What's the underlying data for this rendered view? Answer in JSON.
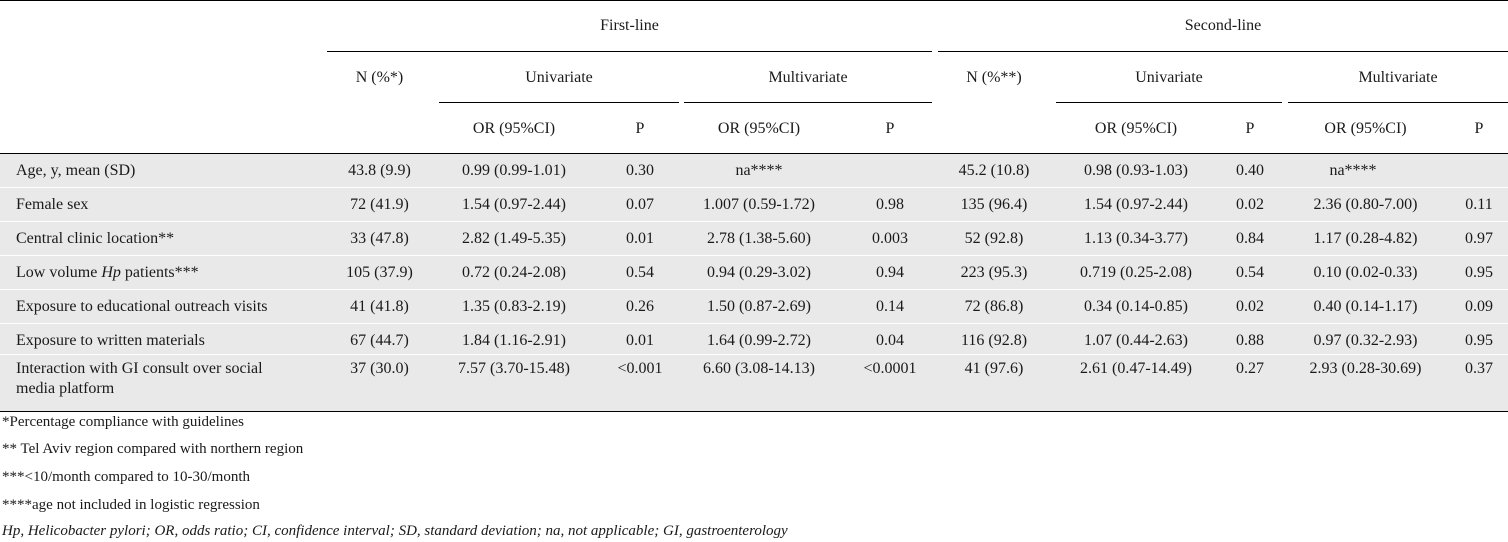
{
  "header": {
    "first_line": "First-line",
    "second_line": "Second-line",
    "n_pct_first": "N (%*)",
    "n_pct_second": "N (%**)",
    "univariate": "Univariate",
    "multivariate": "Multivariate",
    "or_ci": "OR (95%CI)",
    "p": "P"
  },
  "rows": [
    {
      "label": "Age, y, mean (SD)",
      "fl_n": "43.8 (9.9)",
      "fl_u_or": "0.99 (0.99-1.01)",
      "fl_u_p": "0.30",
      "fl_m_or": "na****",
      "fl_m_p": "",
      "sl_n": "45.2 (10.8)",
      "sl_u_or": "0.98 (0.93-1.03)",
      "sl_u_p": "0.40",
      "sl_m_or": "na****",
      "sl_m_p": ""
    },
    {
      "label": "Female sex",
      "fl_n": "72 (41.9)",
      "fl_u_or": "1.54 (0.97-2.44)",
      "fl_u_p": "0.07",
      "fl_m_or": "1.007 (0.59-1.72)",
      "fl_m_p": "0.98",
      "sl_n": "135 (96.4)",
      "sl_u_or": "1.54 (0.97-2.44)",
      "sl_u_p": "0.02",
      "sl_m_or": "2.36 (0.80-7.00)",
      "sl_m_p": "0.11"
    },
    {
      "label": "Central clinic location**",
      "fl_n": "33 (47.8)",
      "fl_u_or": "2.82 (1.49-5.35)",
      "fl_u_p": "0.01",
      "fl_m_or": "2.78 (1.38-5.60)",
      "fl_m_p": "0.003",
      "sl_n": "52 (92.8)",
      "sl_u_or": "1.13 (0.34-3.77)",
      "sl_u_p": "0.84",
      "sl_m_or": "1.17 (0.28-4.82)",
      "sl_m_p": "0.97"
    },
    {
      "label_pre": "Low volume ",
      "label_em": "Hp",
      "label_post": " patients***",
      "fl_n": "105 (37.9)",
      "fl_u_or": "0.72 (0.24-2.08)",
      "fl_u_p": "0.54",
      "fl_m_or": "0.94 (0.29-3.02)",
      "fl_m_p": "0.94",
      "sl_n": "223 (95.3)",
      "sl_u_or": "0.719 (0.25-2.08)",
      "sl_u_p": "0.54",
      "sl_m_or": "0.10 (0.02-0.33)",
      "sl_m_p": "0.95"
    },
    {
      "label": "Exposure to educational outreach visits",
      "fl_n": "41 (41.8)",
      "fl_u_or": "1.35 (0.83-2.19)",
      "fl_u_p": "0.26",
      "fl_m_or": "1.50 (0.87-2.69)",
      "fl_m_p": "0.14",
      "sl_n": "72 (86.8)",
      "sl_u_or": "0.34 (0.14-0.85)",
      "sl_u_p": "0.02",
      "sl_m_or": "0.40 (0.14-1.17)",
      "sl_m_p": "0.09"
    },
    {
      "label": "Exposure to written materials",
      "fl_n": "67 (44.7)",
      "fl_u_or": "1.84 (1.16-2.91)",
      "fl_u_p": "0.01",
      "fl_m_or": "1.64 (0.99-2.72)",
      "fl_m_p": "0.04",
      "sl_n": "116 (92.8)",
      "sl_u_or": "1.07 (0.44-2.63)",
      "sl_u_p": "0.88",
      "sl_m_or": "0.97 (0.32-2.93)",
      "sl_m_p": "0.95"
    },
    {
      "label_line1": "Interaction with GI consult over social",
      "label_line2": "media platform",
      "fl_n": "37 (30.0)",
      "fl_u_or": "7.57 (3.70-15.48)",
      "fl_u_p": "<0.001",
      "fl_m_or": "6.60 (3.08-14.13)",
      "fl_m_p": "<0.0001",
      "sl_n": "41 (97.6)",
      "sl_u_or": "2.61 (0.47-14.49)",
      "sl_u_p": "0.27",
      "sl_m_or": "2.93 (0.28-30.69)",
      "sl_m_p": "0.37"
    }
  ],
  "footnotes": [
    "*Percentage compliance with guidelines",
    "** Tel Aviv region compared with northern region",
    "***<10/month compared to 10-30/month",
    "****age not included in logistic regression",
    "Hp, Helicobacter pylori; OR, odds ratio; CI, confidence interval; SD, standard deviation; na, not applicable; GI, gastroenterology"
  ]
}
